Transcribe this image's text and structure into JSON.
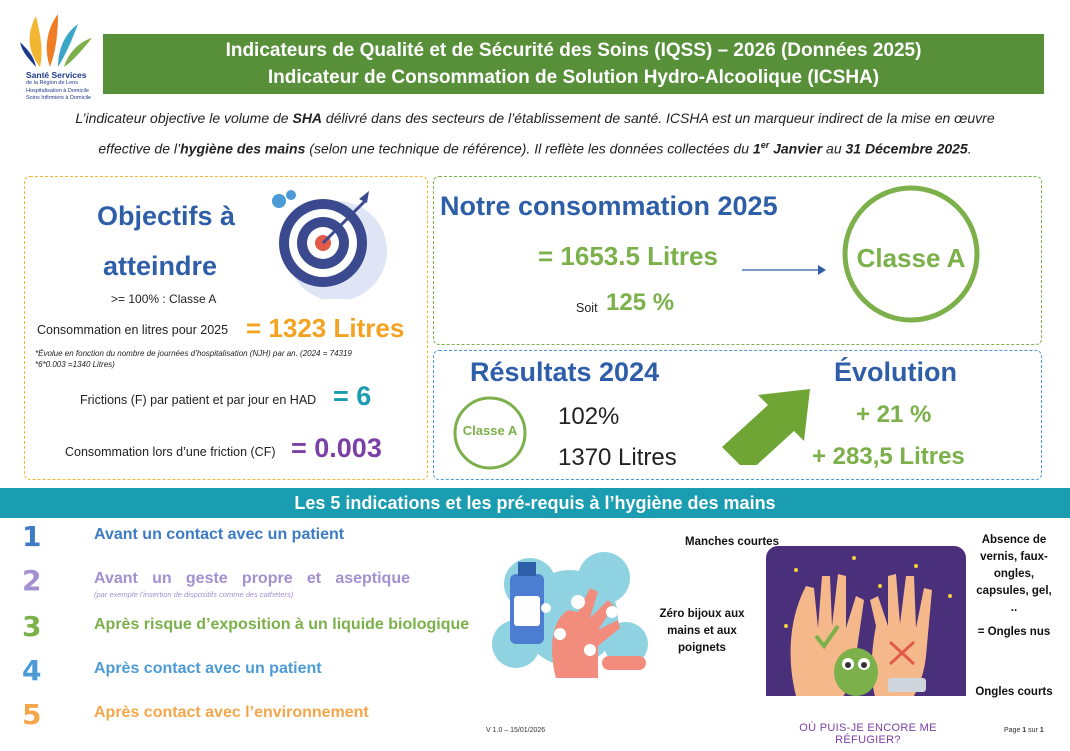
{
  "logo": {
    "line1": "Santé Services",
    "line2": "de la Région de Lens",
    "line3": "Hospitalisation à Domicile",
    "line4": "Soins Infirmiers à Domicile"
  },
  "header": {
    "title1": "Indicateurs de Qualité et de Sécurité des Soins (IQSS) – 2026 (Données 2025)",
    "title2": "Indicateur de Consommation de Solution Hydro-Alcoolique (ICSHA)"
  },
  "intro": {
    "l1_a": "L’indicateur objective le volume de ",
    "l1_b": "SHA",
    "l1_c": " délivré dans des secteurs de l’établissement de santé. ICSHA est un marqueur indirect de la mise en œuvre",
    "l2_a": "effective de l’",
    "l2_b": "hygiène des mains",
    "l2_c": " (selon une technique de référence). Il reflète les données collectées du ",
    "l2_d": "1",
    "l2_sup": "er",
    "l2_e": " Janvier",
    "l2_f": " au ",
    "l2_g": "31 Décembre 2025",
    "l2_h": "."
  },
  "objectifs": {
    "title1": "Objectifs à",
    "title2": "atteindre",
    "threshold": ">= 100% : Classe A",
    "conso_label": "Consommation en litres pour 2025",
    "conso_value": "= 1323 Litres",
    "note1": "*Évolue en fonction du nombre de journées d’hospitalisation (NJH) par an. (2024 = 74319",
    "note2": "*6*0.003 =1340 Litres)",
    "frictions_label": "Frictions (F) par patient et par jour en HAD",
    "frictions_value": "= 6",
    "cf_label": "Consommation lors d’une friction (CF)",
    "cf_value": "= 0.003"
  },
  "notre": {
    "title": "Notre consommation 2025",
    "value": "= 1653.5 Litres",
    "soit_label": "Soit",
    "soit_value": "125 %",
    "classe": "Classe A"
  },
  "resultats": {
    "title": "Résultats 2024",
    "classe": "Classe A",
    "pct": "102%",
    "litres": "1370 Litres"
  },
  "evolution": {
    "title": "Évolution",
    "pct": "+ 21 %",
    "litres": "+ 283,5 Litres"
  },
  "indications": {
    "title": "Les 5 indications et les pré-requis à l’hygiène des mains",
    "items": [
      {
        "num": "1",
        "label": "Avant un contact avec un patient",
        "color": "#3d7bc4"
      },
      {
        "num": "2",
        "label": "Avant un geste propre et aseptique",
        "color": "#a48fd0",
        "sub": "(par exemple l’insertion de dispositifs comme des cathéters)"
      },
      {
        "num": "3",
        "label": "Après risque d’exposition à un liquide biologique",
        "color": "#7bb04a"
      },
      {
        "num": "4",
        "label": "Après contact avec un patient",
        "color": "#4c9bd6"
      },
      {
        "num": "5",
        "label": "Après contact avec l’environnement",
        "color": "#f4a64a"
      }
    ]
  },
  "prereq": {
    "manches": "Manches courtes",
    "bijoux": "Zéro bijoux aux mains et aux poignets",
    "absence": "Absence de vernis, faux-ongles, capsules, gel, ..",
    "ongles_nus": "= Ongles nus",
    "ongles_courts": "Ongles courts",
    "caption": "OÙ PUIS-JE ENCORE ME RÉFUGIER?"
  },
  "footer": {
    "version": "V 1.0 – 15/01/2026",
    "page_a": "Page ",
    "page_b": "1",
    "page_c": " sur ",
    "page_d": "1"
  },
  "colors": {
    "banner_green": "#58903a",
    "accent_green": "#7bb04a",
    "title_blue": "#2f5ea8",
    "orange": "#f4a321",
    "teal": "#1a9db0",
    "purple": "#7b3fa8"
  }
}
